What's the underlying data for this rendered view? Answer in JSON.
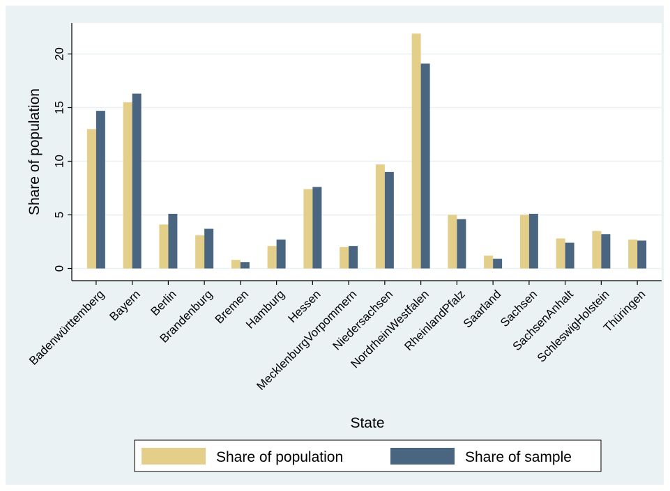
{
  "chart_data": {
    "type": "bar",
    "title": "",
    "xlabel": "State",
    "ylabel": "Share of population",
    "ylim": [
      0,
      23
    ],
    "yticks": [
      0,
      5,
      10,
      15,
      20
    ],
    "grid": true,
    "legend_position": "bottom",
    "categories": [
      "Badenwürttemberg",
      "Bayern",
      "Berlin",
      "Brandenburg",
      "Bremen",
      "Hamburg",
      "Hessen",
      "MecklenburgVorpommern",
      "Niedersachsen",
      "NordrheinWestfalen",
      "RheinlandPfalz",
      "Saarland",
      "Sachsen",
      "SachsenAnhalt",
      "SchleswigHolstein",
      "Thüringen"
    ],
    "series": [
      {
        "name": "Share of population",
        "color": "#e3cf8a",
        "values": [
          13.0,
          15.5,
          4.1,
          3.1,
          0.8,
          2.1,
          7.4,
          2.0,
          9.7,
          21.9,
          5.0,
          1.2,
          5.0,
          2.8,
          3.5,
          2.7
        ]
      },
      {
        "name": "Share of sample",
        "color": "#4a6580",
        "values": [
          14.7,
          16.3,
          5.1,
          3.7,
          0.6,
          2.7,
          7.6,
          2.1,
          9.0,
          19.1,
          4.6,
          0.9,
          5.1,
          2.4,
          3.2,
          2.6
        ]
      }
    ]
  }
}
